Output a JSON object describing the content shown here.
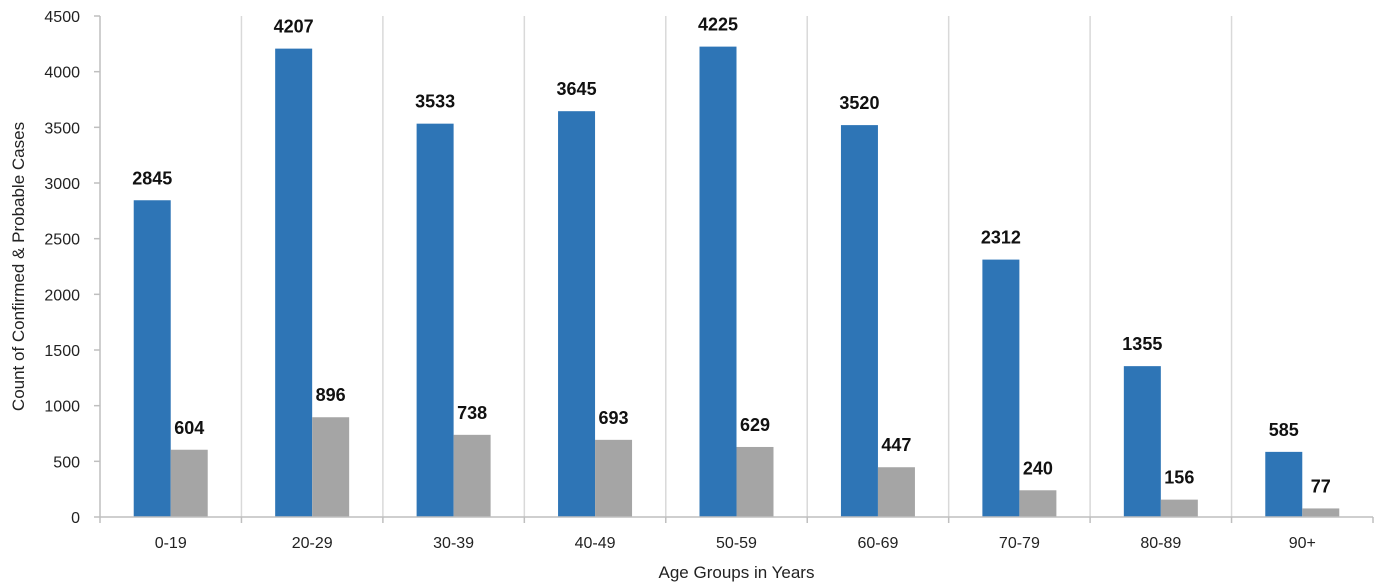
{
  "chart_data": {
    "type": "bar",
    "title": "",
    "xlabel": "Age Groups in Years",
    "ylabel": "Count of Confirmed & Probable Cases",
    "categories": [
      "0-19",
      "20-29",
      "30-39",
      "40-49",
      "50-59",
      "60-69",
      "70-79",
      "80-89",
      "90+"
    ],
    "series": [
      {
        "color": "#2E75B6",
        "values": [
          2845,
          4207,
          3533,
          3645,
          4225,
          3520,
          2312,
          1355,
          585
        ]
      },
      {
        "color": "#A5A5A5",
        "values": [
          604,
          896,
          738,
          693,
          629,
          447,
          240,
          156,
          77
        ]
      }
    ],
    "ylim": [
      0,
      4500
    ],
    "yticks": [
      0,
      500,
      1000,
      1500,
      2000,
      2500,
      3000,
      3500,
      4000,
      4500
    ],
    "grid": "vertical category separators",
    "legend": "none",
    "data_labels": true
  }
}
